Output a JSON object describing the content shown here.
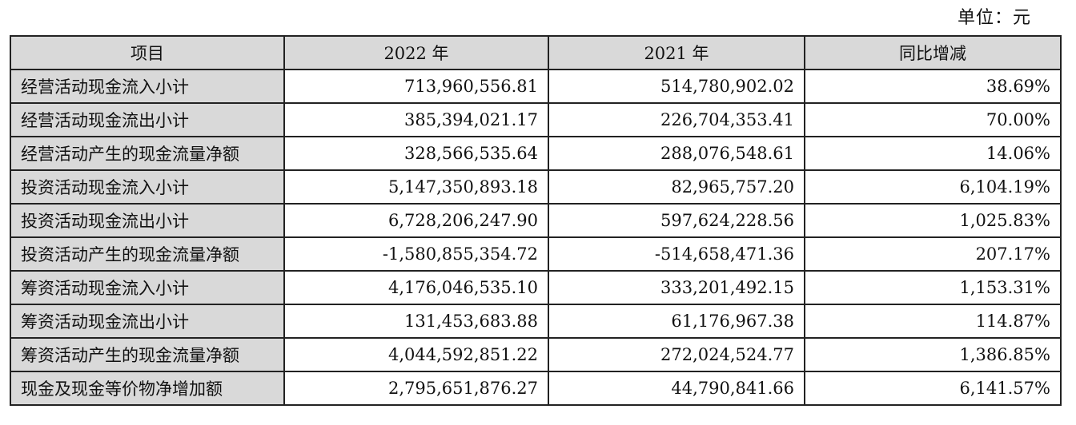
{
  "unit_label": "单位：元",
  "table": {
    "headers": [
      "项目",
      "2022 年",
      "2021 年",
      "同比增减"
    ],
    "rows": [
      {
        "item": "经营活动现金流入小计",
        "y2022": "713,960,556.81",
        "y2021": "514,780,902.02",
        "yoy": "38.69%"
      },
      {
        "item": "经营活动现金流出小计",
        "y2022": "385,394,021.17",
        "y2021": "226,704,353.41",
        "yoy": "70.00%"
      },
      {
        "item": "经营活动产生的现金流量净额",
        "y2022": "328,566,535.64",
        "y2021": "288,076,548.61",
        "yoy": "14.06%"
      },
      {
        "item": "投资活动现金流入小计",
        "y2022": "5,147,350,893.18",
        "y2021": "82,965,757.20",
        "yoy": "6,104.19%"
      },
      {
        "item": "投资活动现金流出小计",
        "y2022": "6,728,206,247.90",
        "y2021": "597,624,228.56",
        "yoy": "1,025.83%"
      },
      {
        "item": "投资活动产生的现金流量净额",
        "y2022": "-1,580,855,354.72",
        "y2021": "-514,658,471.36",
        "yoy": "207.17%"
      },
      {
        "item": "筹资活动现金流入小计",
        "y2022": "4,176,046,535.10",
        "y2021": "333,201,492.15",
        "yoy": "1,153.31%"
      },
      {
        "item": "筹资活动现金流出小计",
        "y2022": "131,453,683.88",
        "y2021": "61,176,967.38",
        "yoy": "114.87%"
      },
      {
        "item": "筹资活动产生的现金流量净额",
        "y2022": "4,044,592,851.22",
        "y2021": "272,024,524.77",
        "yoy": "1,386.85%"
      },
      {
        "item": "现金及现金等价物净增加额",
        "y2022": "2,795,651,876.27",
        "y2021": "44,790,841.66",
        "yoy": "6,141.57%"
      }
    ]
  }
}
